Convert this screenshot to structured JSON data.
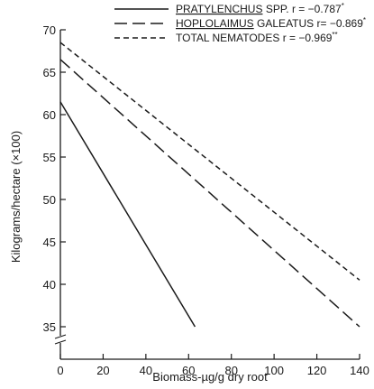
{
  "chart_data": {
    "type": "line",
    "xlabel": "Biomass-µg/g dry root",
    "ylabel": "Kilograms/hectare (×100)",
    "xlim": [
      0,
      140
    ],
    "ylim": [
      35,
      70
    ],
    "x_ticks": [
      "0",
      "20",
      "40",
      "60",
      "80",
      "100",
      "120",
      "140"
    ],
    "y_ticks": [
      "35",
      "40",
      "45",
      "50",
      "55",
      "60",
      "65",
      "70"
    ],
    "axis_break": "y",
    "grid": false,
    "legend_position": "top",
    "series": [
      {
        "name_genus": "PRATYLENCHUS",
        "name_suffix": "SPP.",
        "stat": "r = −0.787",
        "sig": "*",
        "style": "solid",
        "color": "#1a1a1a",
        "points": [
          [
            0,
            61.5
          ],
          [
            63,
            35
          ]
        ]
      },
      {
        "name_genus": "HOPLOLAIMUS",
        "name_suffix": "GALEATUS",
        "stat": "r= −0.869",
        "sig": "*",
        "style": "long-dash",
        "color": "#1a1a1a",
        "points": [
          [
            0,
            66.5
          ],
          [
            140,
            35
          ]
        ]
      },
      {
        "name_genus": "",
        "name_suffix": "TOTAL NEMATODES",
        "stat": "r = −0.969",
        "sig": "**",
        "style": "short-dash",
        "color": "#1a1a1a",
        "points": [
          [
            0,
            68.5
          ],
          [
            140,
            40.5
          ]
        ]
      }
    ]
  }
}
